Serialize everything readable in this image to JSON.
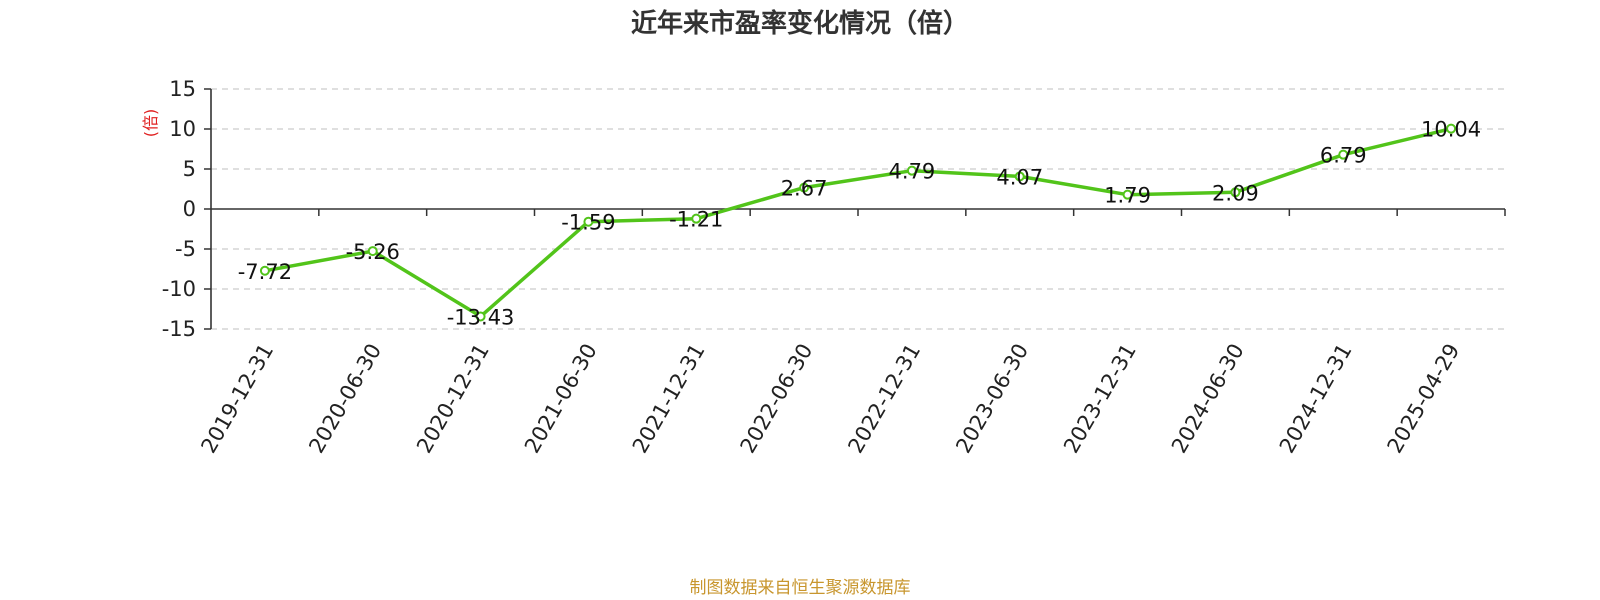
{
  "chart_data": {
    "type": "line",
    "title": "近年来市盈率变化情况（倍）",
    "ylabel": "(倍)",
    "categories": [
      "2019-12-31",
      "2020-06-30",
      "2020-12-31",
      "2021-06-30",
      "2021-12-31",
      "2022-06-30",
      "2022-12-31",
      "2023-06-30",
      "2023-12-31",
      "2024-06-30",
      "2024-12-31",
      "2025-04-29"
    ],
    "values": [
      -7.72,
      -5.26,
      -13.43,
      -1.59,
      -1.21,
      2.67,
      4.79,
      4.07,
      1.79,
      2.09,
      6.79,
      10.04
    ],
    "data_labels": [
      "-7.72",
      "-5.26",
      "-13.43",
      "-1.59",
      "-1.21",
      "2.67",
      "4.79",
      "4.07",
      "1.79",
      "2.09",
      "6.79",
      "10.04"
    ],
    "yticks": [
      "15",
      "10",
      "5",
      "0",
      "-5",
      "-10",
      "-15"
    ],
    "ytick_values": [
      15,
      10,
      5,
      0,
      -5,
      -10,
      -15
    ],
    "ylim": [
      -15,
      15
    ],
    "grid": true,
    "colors": {
      "line": "#52c41a",
      "ylabel": "#e02020",
      "source": "#c8962e",
      "grid": "#cccccc"
    }
  },
  "footer": {
    "source": "制图数据来自恒生聚源数据库"
  }
}
